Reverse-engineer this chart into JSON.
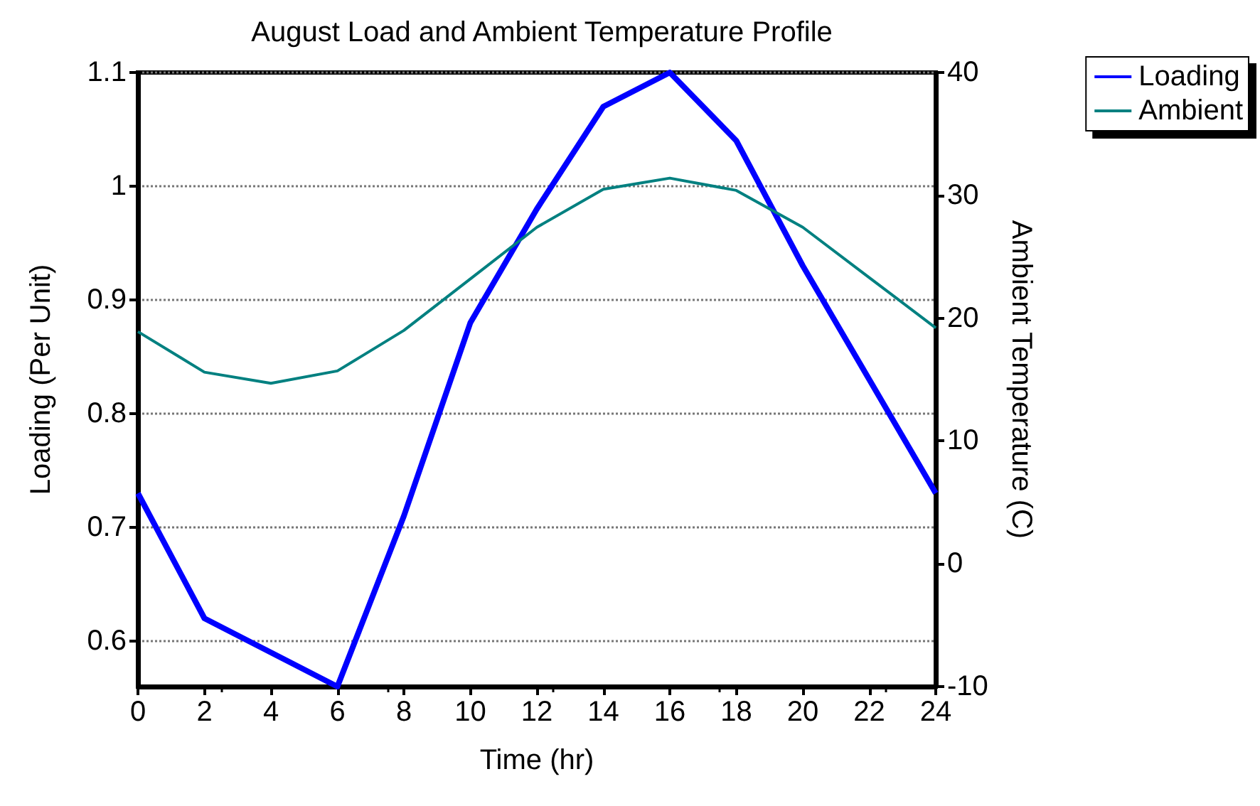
{
  "chart_data": {
    "type": "line",
    "title": "August Load and Ambient Temperature Profile",
    "xlabel": "Time (hr)",
    "ylabel": "Loading (Per Unit)",
    "y2label": "Ambient Temperature (C)",
    "x": [
      0,
      2,
      4,
      6,
      8,
      10,
      12,
      14,
      16,
      18,
      20,
      22,
      24
    ],
    "series": [
      {
        "name": "Loading",
        "color": "#0000ff",
        "values": [
          0.73,
          0.62,
          0.59,
          0.56,
          0.71,
          0.88,
          0.98,
          1.07,
          1.1,
          1.04,
          0.93,
          0.83,
          0.73
        ]
      },
      {
        "name": "Ambient",
        "color": "#008080",
        "axis": "y2",
        "values": [
          18.9,
          15.6,
          14.7,
          15.7,
          19.0,
          23.2,
          27.4,
          30.5,
          31.4,
          30.4,
          27.4,
          23.3,
          19.2
        ]
      }
    ],
    "xlim": [
      0,
      24
    ],
    "xticks": [
      0,
      2,
      4,
      6,
      8,
      10,
      12,
      14,
      16,
      18,
      20,
      22,
      24
    ],
    "ylim": [
      0.56,
      1.1
    ],
    "yticks": [
      0.6,
      0.7,
      0.8,
      0.9,
      {
        "value": 1,
        "label": "1"
      },
      1.1
    ],
    "y2lim": [
      -10,
      40
    ],
    "y2ticks": [
      -10,
      0,
      10,
      20,
      30,
      40
    ],
    "grid": "y",
    "legend": "top right",
    "marker": "none",
    "line_style": "solid"
  }
}
